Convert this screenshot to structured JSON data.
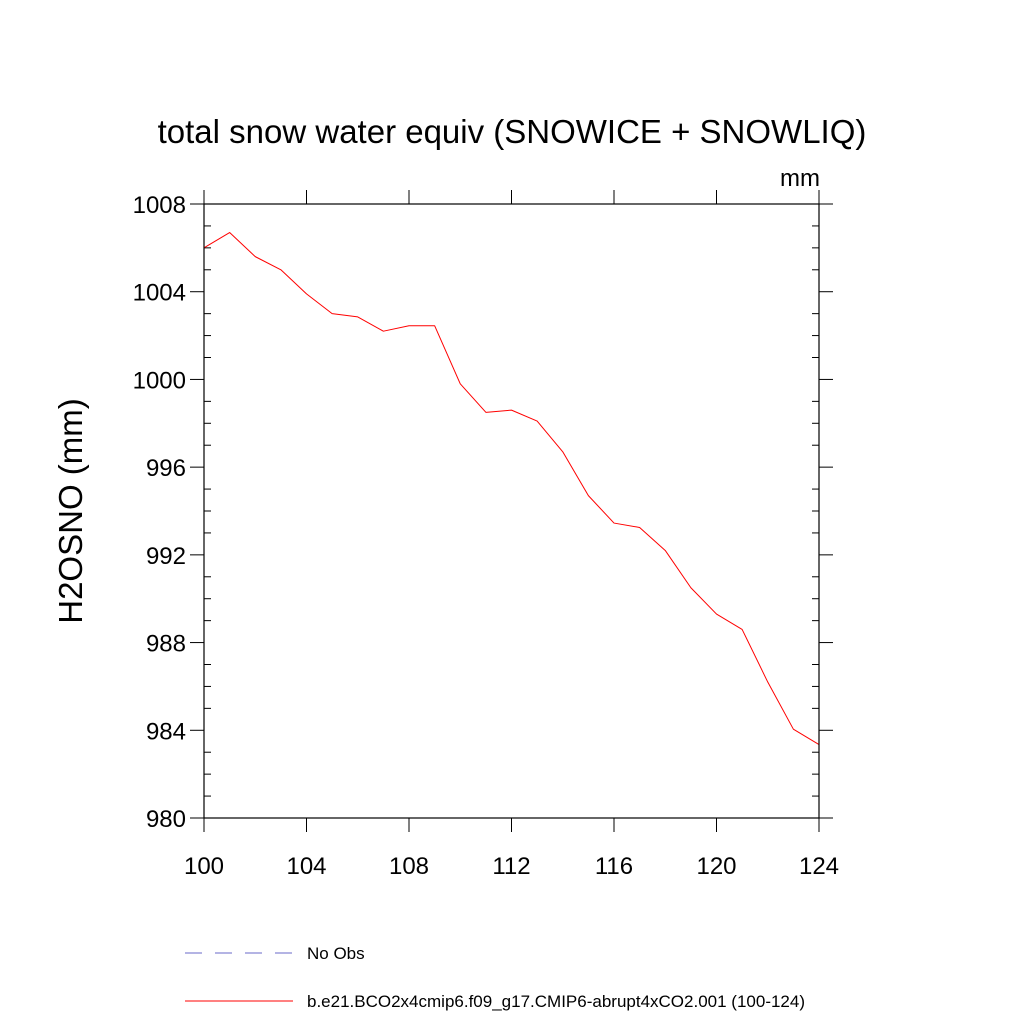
{
  "chart_data": {
    "type": "line",
    "title": "total snow water equiv (SNOWICE + SNOWLIQ)",
    "units_label": "mm",
    "xlabel": "",
    "ylabel": "H2OSNO  (mm)",
    "xlim": [
      100,
      124
    ],
    "ylim": [
      980,
      1008
    ],
    "xticks": [
      100,
      104,
      108,
      112,
      116,
      120,
      124
    ],
    "yticks": [
      980,
      984,
      988,
      992,
      996,
      1000,
      1004,
      1008
    ],
    "grid": false,
    "series": [
      {
        "name": "b.e21.BCO2x4cmip6.f09_g17.CMIP6-abrupt4xCO2.001 (100-124)",
        "color": "#ff0000",
        "style": "solid",
        "x": [
          100,
          101,
          102,
          103,
          104,
          105,
          106,
          107,
          108,
          109,
          110,
          111,
          112,
          113,
          114,
          115,
          116,
          117,
          118,
          119,
          120,
          121,
          122,
          123,
          124
        ],
        "values": [
          1006.0,
          1006.7,
          1005.6,
          1005.0,
          1003.9,
          1003.0,
          1002.85,
          1002.2,
          1002.45,
          1002.45,
          999.8,
          998.5,
          998.6,
          998.1,
          996.7,
          994.7,
          993.45,
          993.25,
          992.2,
          990.5,
          989.3,
          988.6,
          986.2,
          984.05,
          983.35
        ]
      }
    ],
    "legend": [
      {
        "label": "No Obs",
        "color": "#6a6ac8",
        "style": "dashed"
      },
      {
        "label": "b.e21.BCO2x4cmip6.f09_g17.CMIP6-abrupt4xCO2.001 (100-124)",
        "color": "#ff0000",
        "style": "solid"
      }
    ],
    "legend_position": "bottom-left"
  }
}
